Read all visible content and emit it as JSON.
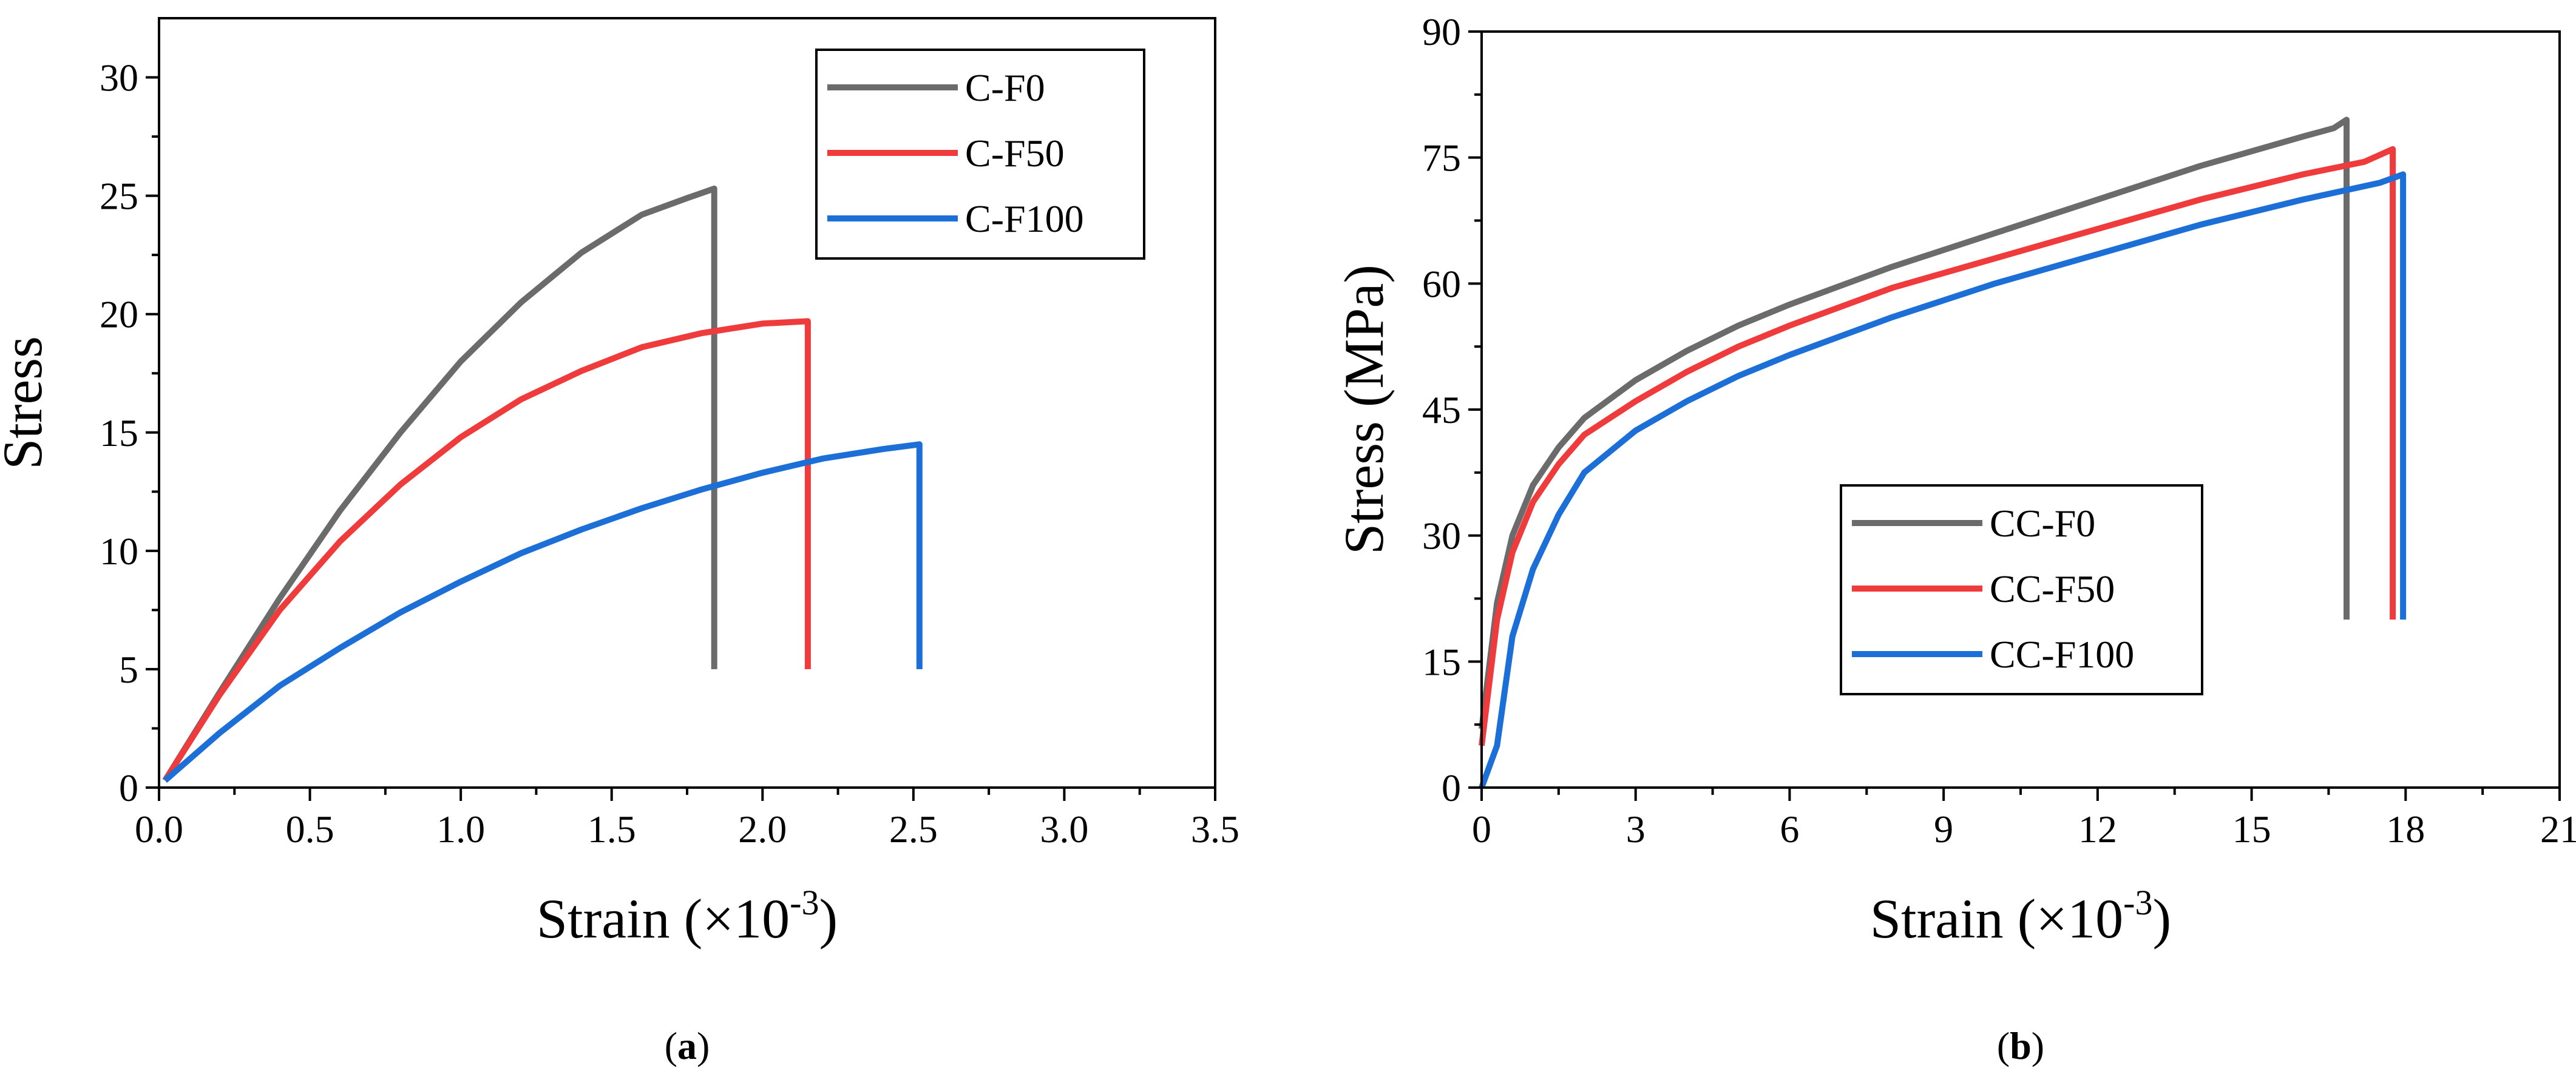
{
  "chart_data": [
    {
      "type": "line",
      "caption": "a",
      "title": "",
      "xlabel": "Strain (×10",
      "xlabel_sup": "-3",
      "xlabel_end": ")",
      "ylabel": "Stress",
      "xlim": [
        0,
        3.5
      ],
      "ylim": [
        0,
        32.5
      ],
      "xticks": [
        0,
        0.5,
        1,
        1.5,
        2,
        2.5,
        3,
        3.5
      ],
      "xtick_labels": [
        "0.0",
        "0.5",
        "1.0",
        "1.5",
        "2.0",
        "2.5",
        "3.0",
        "3.5"
      ],
      "yticks": [
        0,
        5,
        10,
        15,
        20,
        25,
        30
      ],
      "ytick_labels": [
        "0",
        "5",
        "10",
        "15",
        "20",
        "25",
        "30"
      ],
      "legend_position": "top-right",
      "series": [
        {
          "name": "C-F0",
          "color": "#6b6b6b",
          "x": [
            0.02,
            0.2,
            0.4,
            0.6,
            0.8,
            1.0,
            1.2,
            1.4,
            1.6,
            1.75,
            1.84,
            1.84
          ],
          "y": [
            0.3,
            4.0,
            8.0,
            11.7,
            15.0,
            18.0,
            20.5,
            22.6,
            24.2,
            24.9,
            25.3,
            5.0
          ]
        },
        {
          "name": "C-F50",
          "color": "#ef3b3b",
          "x": [
            0.02,
            0.2,
            0.4,
            0.6,
            0.8,
            1.0,
            1.2,
            1.4,
            1.6,
            1.8,
            2.0,
            2.15,
            2.15
          ],
          "y": [
            0.3,
            3.9,
            7.5,
            10.4,
            12.8,
            14.8,
            16.4,
            17.6,
            18.6,
            19.2,
            19.6,
            19.7,
            5.0
          ]
        },
        {
          "name": "C-F100",
          "color": "#1c6fd6",
          "x": [
            0.02,
            0.2,
            0.4,
            0.6,
            0.8,
            1.0,
            1.2,
            1.4,
            1.6,
            1.8,
            2.0,
            2.2,
            2.4,
            2.52,
            2.52
          ],
          "y": [
            0.3,
            2.3,
            4.3,
            5.9,
            7.4,
            8.7,
            9.9,
            10.9,
            11.8,
            12.6,
            13.3,
            13.9,
            14.3,
            14.5,
            5.0
          ]
        }
      ]
    },
    {
      "type": "line",
      "caption": "b",
      "title": "",
      "xlabel": "Strain (×10",
      "xlabel_sup": "-3",
      "xlabel_end": ")",
      "ylabel": "Stress (MPa)",
      "xlim": [
        0,
        21
      ],
      "ylim": [
        0,
        90
      ],
      "xticks": [
        0,
        3,
        6,
        9,
        12,
        15,
        18,
        21
      ],
      "xtick_labels": [
        "0",
        "3",
        "6",
        "9",
        "12",
        "15",
        "18",
        "21"
      ],
      "yticks": [
        0,
        15,
        30,
        45,
        60,
        75,
        90
      ],
      "ytick_labels": [
        "0",
        "15",
        "30",
        "45",
        "60",
        "75",
        "90"
      ],
      "legend_position": "center",
      "series": [
        {
          "name": "CC-F0",
          "color": "#6b6b6b",
          "x": [
            0,
            0.3,
            0.6,
            1.0,
            1.5,
            2.0,
            3.0,
            4.0,
            5.0,
            6.0,
            8.0,
            10.0,
            12.0,
            14.0,
            16.0,
            16.6,
            16.85,
            16.85
          ],
          "y": [
            7,
            22,
            30,
            36,
            40.5,
            44,
            48.5,
            52,
            55,
            57.5,
            62,
            66,
            70,
            74,
            77.5,
            78.5,
            79.5,
            20
          ]
        },
        {
          "name": "CC-F50",
          "color": "#ef3b3b",
          "x": [
            0,
            0.3,
            0.6,
            1.0,
            1.5,
            2.0,
            3.0,
            4.0,
            5.0,
            6.0,
            8.0,
            10.0,
            12.0,
            14.0,
            16.0,
            17.2,
            17.75,
            17.75
          ],
          "y": [
            5,
            20,
            28,
            34,
            38.5,
            42,
            46,
            49.5,
            52.5,
            55,
            59.5,
            63,
            66.5,
            70,
            73,
            74.5,
            76,
            20
          ]
        },
        {
          "name": "CC-F100",
          "color": "#1c6fd6",
          "x": [
            0,
            0.3,
            0.6,
            1.0,
            1.5,
            2.0,
            3.0,
            4.0,
            5.0,
            6.0,
            8.0,
            10.0,
            12.0,
            14.0,
            16.0,
            17.5,
            17.95,
            17.95
          ],
          "y": [
            0,
            5,
            18,
            26,
            32.5,
            37.5,
            42.5,
            46,
            49,
            51.5,
            56,
            60,
            63.5,
            67,
            70,
            72,
            73,
            20
          ]
        }
      ]
    }
  ]
}
